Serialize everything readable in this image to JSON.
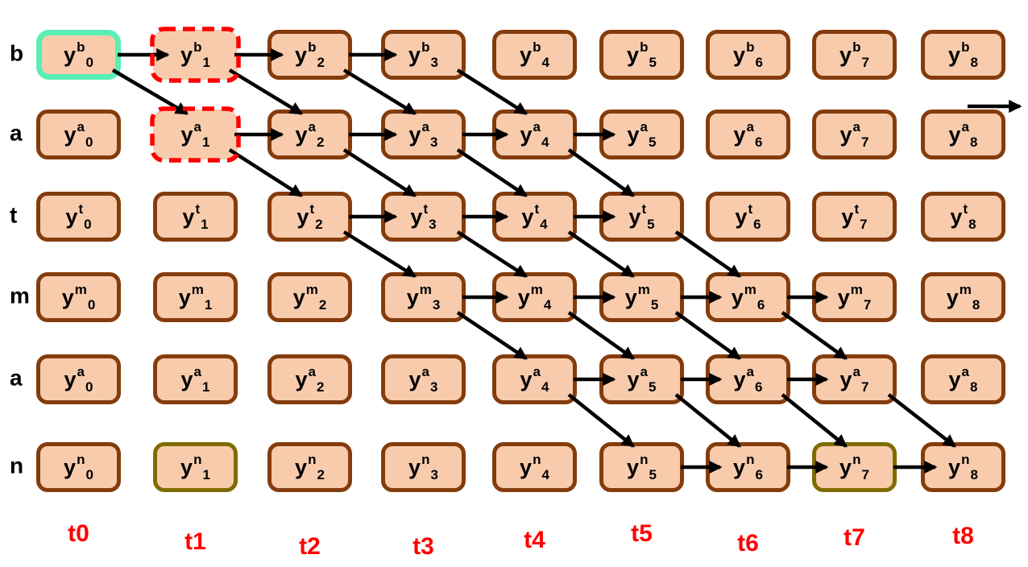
{
  "lattice": {
    "symbol": "y",
    "time_labels": [
      "t0",
      "t1",
      "t2",
      "t3",
      "t4",
      "t5",
      "t6",
      "t7",
      "t8"
    ],
    "rows": [
      {
        "row_label": "b",
        "cells": [
          {
            "sup": "b",
            "sub": "0"
          },
          {
            "sup": "b",
            "sub": "1"
          },
          {
            "sup": "b",
            "sub": "2"
          },
          {
            "sup": "b",
            "sub": "3"
          },
          {
            "sup": "b",
            "sub": "4"
          },
          {
            "sup": "b",
            "sub": "5"
          },
          {
            "sup": "b",
            "sub": "6"
          },
          {
            "sup": "b",
            "sub": "7"
          },
          {
            "sup": "b",
            "sub": "8"
          }
        ]
      },
      {
        "row_label": "a",
        "cells": [
          {
            "sup": "a",
            "sub": "0"
          },
          {
            "sup": "a",
            "sub": "1"
          },
          {
            "sup": "a",
            "sub": "2"
          },
          {
            "sup": "a",
            "sub": "3"
          },
          {
            "sup": "a",
            "sub": "4"
          },
          {
            "sup": "a",
            "sub": "5"
          },
          {
            "sup": "a",
            "sub": "6"
          },
          {
            "sup": "a",
            "sub": "7"
          },
          {
            "sup": "a",
            "sub": "8"
          }
        ]
      },
      {
        "row_label": "t",
        "cells": [
          {
            "sup": "t",
            "sub": "0"
          },
          {
            "sup": "t",
            "sub": "1"
          },
          {
            "sup": "t",
            "sub": "2"
          },
          {
            "sup": "t",
            "sub": "3"
          },
          {
            "sup": "t",
            "sub": "4"
          },
          {
            "sup": "t",
            "sub": "5"
          },
          {
            "sup": "t",
            "sub": "6"
          },
          {
            "sup": "t",
            "sub": "7"
          },
          {
            "sup": "t",
            "sub": "8"
          }
        ]
      },
      {
        "row_label": "m",
        "cells": [
          {
            "sup": "m",
            "sub": "0"
          },
          {
            "sup": "m",
            "sub": "1"
          },
          {
            "sup": "m",
            "sub": "2"
          },
          {
            "sup": "m",
            "sub": "3"
          },
          {
            "sup": "m",
            "sub": "4"
          },
          {
            "sup": "m",
            "sub": "5"
          },
          {
            "sup": "m",
            "sub": "6"
          },
          {
            "sup": "m",
            "sub": "7"
          },
          {
            "sup": "m",
            "sub": "8"
          }
        ]
      },
      {
        "row_label": "a",
        "cells": [
          {
            "sup": "a",
            "sub": "0"
          },
          {
            "sup": "a",
            "sub": "1"
          },
          {
            "sup": "a",
            "sub": "2"
          },
          {
            "sup": "a",
            "sub": "3"
          },
          {
            "sup": "a",
            "sub": "4"
          },
          {
            "sup": "a",
            "sub": "5"
          },
          {
            "sup": "a",
            "sub": "6"
          },
          {
            "sup": "a",
            "sub": "7"
          },
          {
            "sup": "a",
            "sub": "8"
          }
        ]
      },
      {
        "row_label": "n",
        "cells": [
          {
            "sup": "n",
            "sub": "0"
          },
          {
            "sup": "n",
            "sub": "1"
          },
          {
            "sup": "n",
            "sub": "2"
          },
          {
            "sup": "n",
            "sub": "3"
          },
          {
            "sup": "n",
            "sub": "4"
          },
          {
            "sup": "n",
            "sub": "5"
          },
          {
            "sup": "n",
            "sub": "6"
          },
          {
            "sup": "n",
            "sub": "7"
          },
          {
            "sup": "n",
            "sub": "8"
          }
        ]
      }
    ],
    "highlights": {
      "teal_solid": [
        "0,0"
      ],
      "red_dashed": [
        "0,1",
        "1,1"
      ],
      "olive_solid": [
        "5,1",
        "5,7"
      ]
    },
    "arrows": {
      "horizontal": [
        [
          0,
          0
        ],
        [
          0,
          1
        ],
        [
          0,
          2
        ],
        [
          1,
          1
        ],
        [
          1,
          2
        ],
        [
          1,
          3
        ],
        [
          1,
          4
        ],
        [
          2,
          2
        ],
        [
          2,
          3
        ],
        [
          2,
          4
        ],
        [
          3,
          3
        ],
        [
          3,
          4
        ],
        [
          3,
          5
        ],
        [
          3,
          6
        ],
        [
          4,
          4
        ],
        [
          4,
          5
        ],
        [
          4,
          6
        ],
        [
          5,
          5
        ],
        [
          5,
          6
        ],
        [
          5,
          7
        ]
      ],
      "diagonal": [
        [
          0,
          0
        ],
        [
          0,
          1
        ],
        [
          0,
          2
        ],
        [
          0,
          3
        ],
        [
          1,
          1
        ],
        [
          1,
          2
        ],
        [
          1,
          3
        ],
        [
          1,
          4
        ],
        [
          2,
          2
        ],
        [
          2,
          3
        ],
        [
          2,
          4
        ],
        [
          2,
          5
        ],
        [
          3,
          3
        ],
        [
          3,
          4
        ],
        [
          3,
          5
        ],
        [
          3,
          6
        ],
        [
          4,
          4
        ],
        [
          4,
          5
        ],
        [
          4,
          6
        ],
        [
          4,
          7
        ]
      ],
      "exit": {
        "row": 1,
        "col": 8
      }
    },
    "colors": {
      "box_fill": "#F8CBAD",
      "box_border": "#843C0C",
      "highlight_teal": "#5AEFB5",
      "highlight_red": "#FF0000",
      "highlight_olive": "#7F6C00",
      "arrow": "#000000",
      "time_label": "#FF0000",
      "row_label": "#000000"
    }
  }
}
